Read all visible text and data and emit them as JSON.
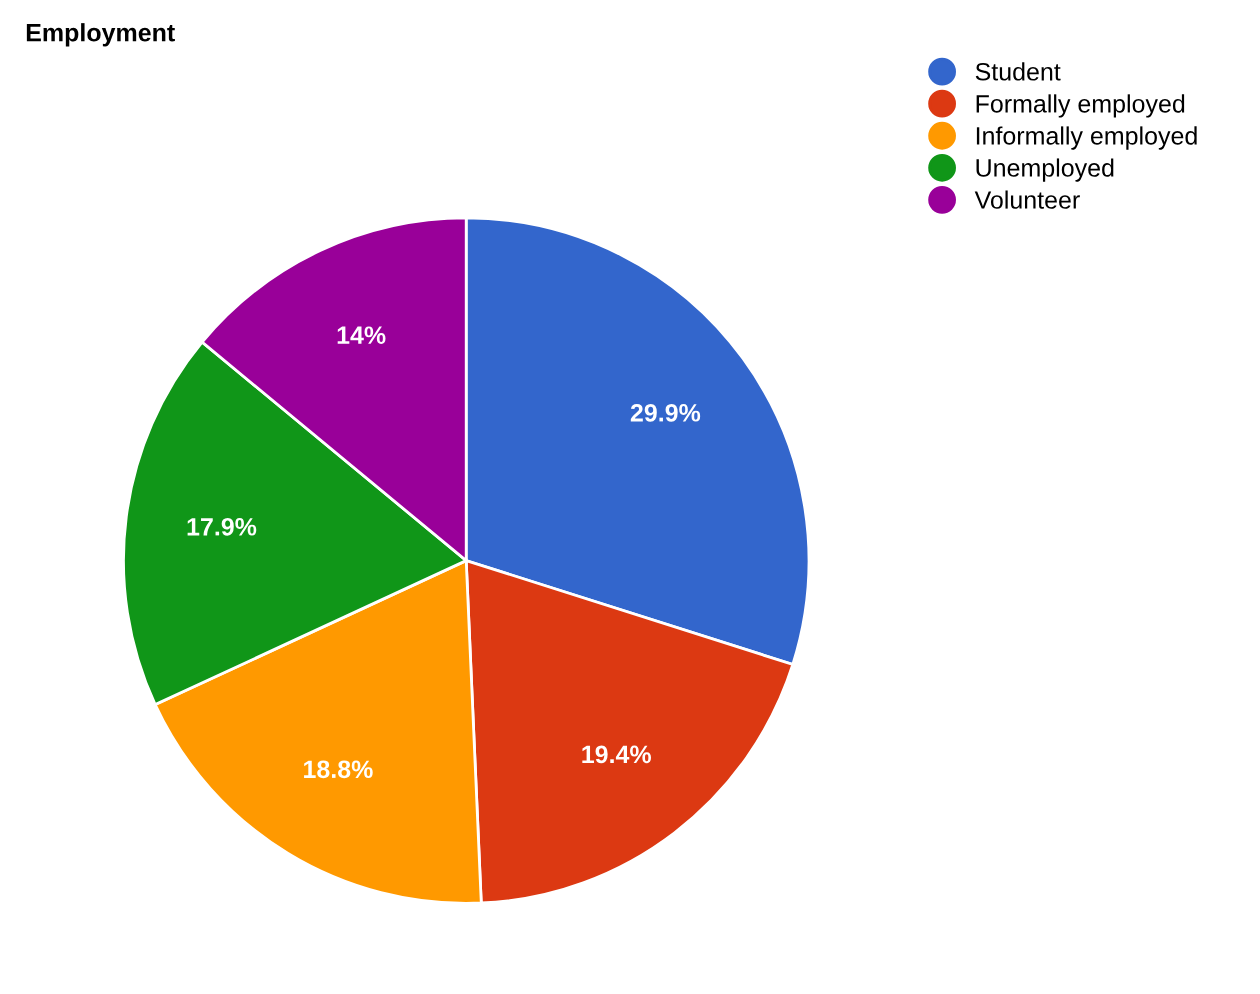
{
  "chart_data": {
    "type": "pie",
    "title": "Employment",
    "categories": [
      "Student",
      "Formally employed",
      "Informally employed",
      "Unemployed",
      "Volunteer"
    ],
    "values": [
      29.9,
      19.4,
      18.8,
      17.9,
      14
    ],
    "colors": [
      "#3366cc",
      "#dc3912",
      "#ff9900",
      "#109618",
      "#990099"
    ],
    "value_labels": [
      "29.9%",
      "19.4%",
      "18.8%",
      "17.9%",
      "14%"
    ],
    "legend": "top right"
  }
}
